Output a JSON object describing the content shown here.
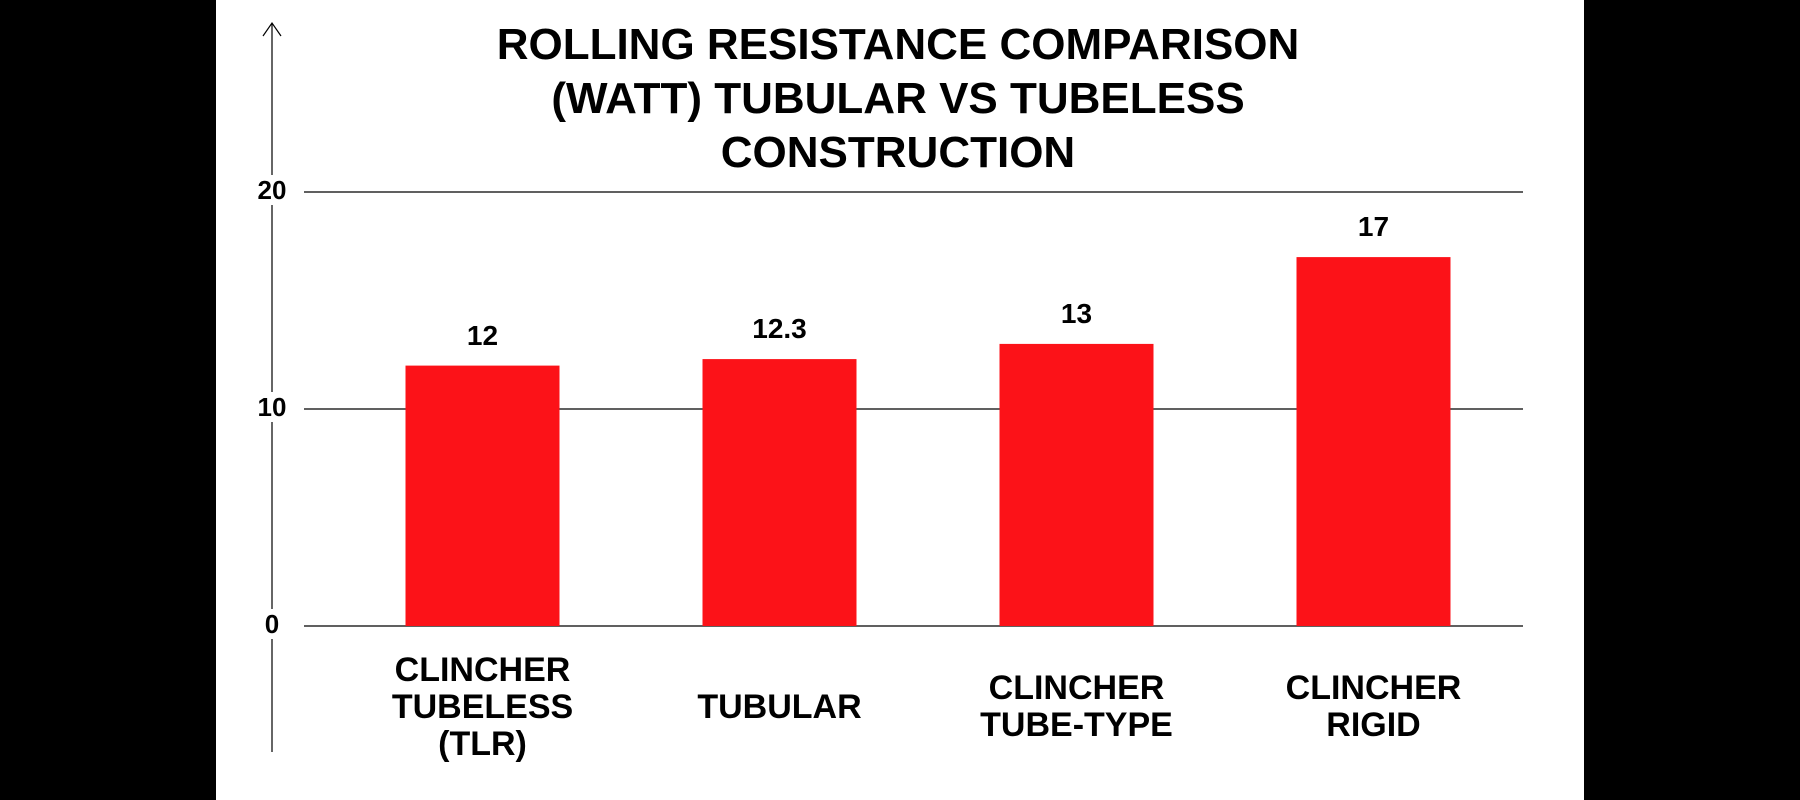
{
  "chart_data": {
    "type": "bar",
    "title": "ROLLING RESISTANCE COMPARISON (WATT) TUBULAR VS TUBELESS CONSTRUCTION",
    "categories": [
      "CLINCHER TUBELESS (TLR)",
      "TUBULAR",
      "CLINCHER TUBE-TYPE",
      "CLINCHER RIGID"
    ],
    "values": [
      12,
      12.3,
      13,
      17
    ],
    "color": "#fc1218",
    "ylim": [
      0,
      20
    ],
    "yticks": [
      0,
      10,
      20
    ],
    "grid": true
  }
}
